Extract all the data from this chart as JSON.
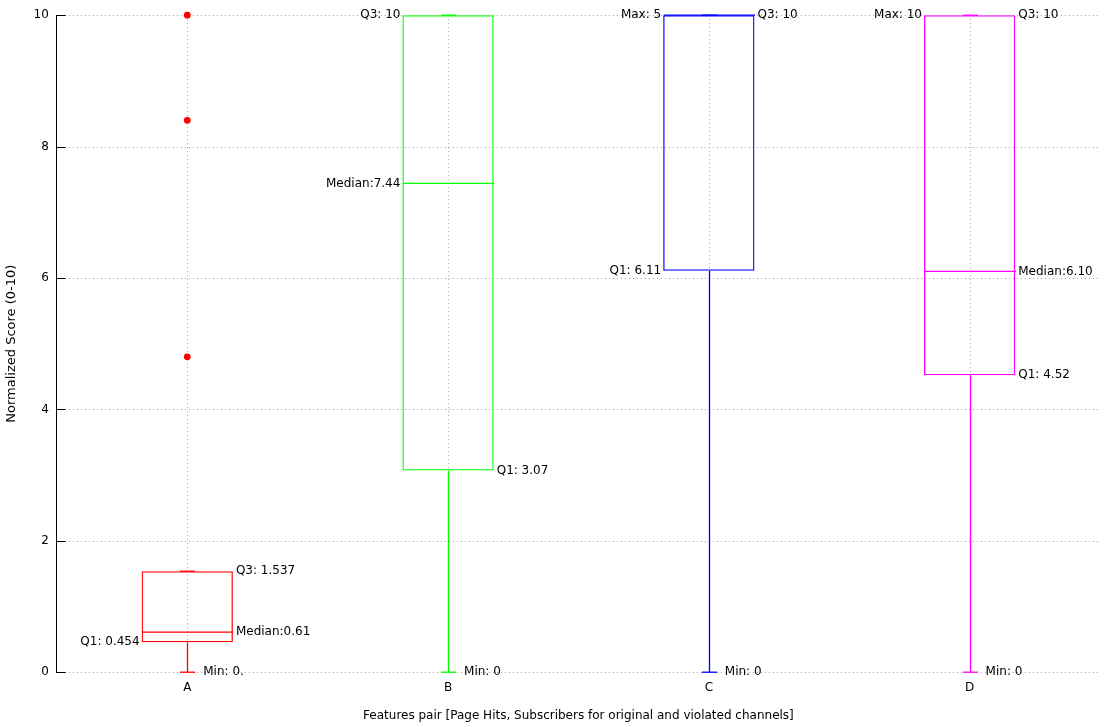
{
  "chart_data": {
    "type": "box",
    "categories": [
      "A",
      "B",
      "C",
      "D"
    ],
    "colors": [
      "#ff0000",
      "#00ff00",
      "#0000ff",
      "#ff00ff"
    ],
    "boxes": [
      {
        "low": 0,
        "q1": 0.454,
        "median": 0.61,
        "q3": 1.537,
        "high": 1.537,
        "outliers": [
          4.8,
          8.4,
          10
        ]
      },
      {
        "low": 0,
        "q1": 3.07,
        "median": 7.44,
        "q3": 10,
        "high": 10
      },
      {
        "low": 0,
        "q1": 6.11,
        "median": 10,
        "q3": 10,
        "high": 10
      },
      {
        "low": 0,
        "q1": 4.52,
        "median": 6.1,
        "q3": 10,
        "high": 10
      }
    ],
    "ylim": [
      0,
      10
    ],
    "yticks": [
      0,
      2,
      4,
      6,
      8,
      10
    ],
    "grid": true,
    "ylabel": "Normalized Score (0-10)",
    "xlabel": "Features pair [Page Hits, Subscribers for original and violated channels]",
    "annotations": [
      "Q3: 1.537",
      "Median:0.61",
      "Q1: 0.454",
      {
        "text": "Min: 0.",
        "x": "A",
        "y": 0
      },
      "Q3: 10",
      "Median:7.44",
      "Q1: 3.07",
      {
        "text": "Min: 0",
        "x": "B",
        "y": 0
      },
      "Max: 5",
      "Q3: 10",
      "Q1: 6.11",
      {
        "text": "Min: 0",
        "x": "C",
        "y": 0
      },
      "Max: 10",
      "Q3: 10",
      "Median:6.10",
      "Q1: 4.52",
      {
        "text": "Min: 0",
        "x": "D",
        "y": 0
      }
    ]
  }
}
